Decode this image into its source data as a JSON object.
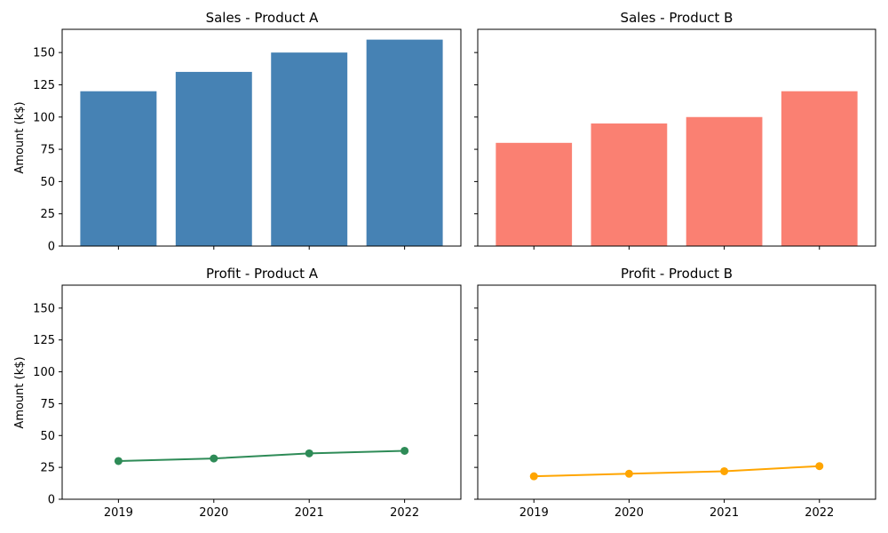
{
  "figure": {
    "background": "#ffffff",
    "shared_ylabel": "Amount (k$)",
    "x_categories": [
      "2019",
      "2020",
      "2021",
      "2022"
    ],
    "ytick_labels": [
      "0",
      "25",
      "50",
      "75",
      "100",
      "125",
      "150"
    ],
    "spine_color": "#000000",
    "text_color": "#000000"
  },
  "chart_data": [
    {
      "type": "bar",
      "title": "Sales - Product A",
      "categories": [
        "2019",
        "2020",
        "2021",
        "2022"
      ],
      "values": [
        120,
        135,
        150,
        160
      ],
      "color": "#4682b4",
      "ylabel": "Amount (k$)",
      "ylim": [
        0,
        168
      ],
      "yticks": [
        0,
        25,
        50,
        75,
        100,
        125,
        150
      ],
      "grid": false,
      "legend": "none"
    },
    {
      "type": "bar",
      "title": "Sales - Product B",
      "categories": [
        "2019",
        "2020",
        "2021",
        "2022"
      ],
      "values": [
        80,
        95,
        100,
        120
      ],
      "color": "#fa8072",
      "ylabel": "Amount (k$)",
      "ylim": [
        0,
        168
      ],
      "yticks": [
        0,
        25,
        50,
        75,
        100,
        125,
        150
      ],
      "grid": false,
      "legend": "none"
    },
    {
      "type": "line",
      "title": "Profit - Product A",
      "categories": [
        "2019",
        "2020",
        "2021",
        "2022"
      ],
      "values": [
        30,
        32,
        36,
        38
      ],
      "color": "#2e8b57",
      "marker": "circle",
      "ylabel": "Amount (k$)",
      "ylim": [
        0,
        168
      ],
      "yticks": [
        0,
        25,
        50,
        75,
        100,
        125,
        150
      ],
      "grid": false,
      "legend": "none"
    },
    {
      "type": "line",
      "title": "Profit - Product B",
      "categories": [
        "2019",
        "2020",
        "2021",
        "2022"
      ],
      "values": [
        18,
        20,
        22,
        26
      ],
      "color": "#ffa500",
      "marker": "circle",
      "ylabel": "Amount (k$)",
      "ylim": [
        0,
        168
      ],
      "yticks": [
        0,
        25,
        50,
        75,
        100,
        125,
        150
      ],
      "grid": false,
      "legend": "none"
    }
  ]
}
